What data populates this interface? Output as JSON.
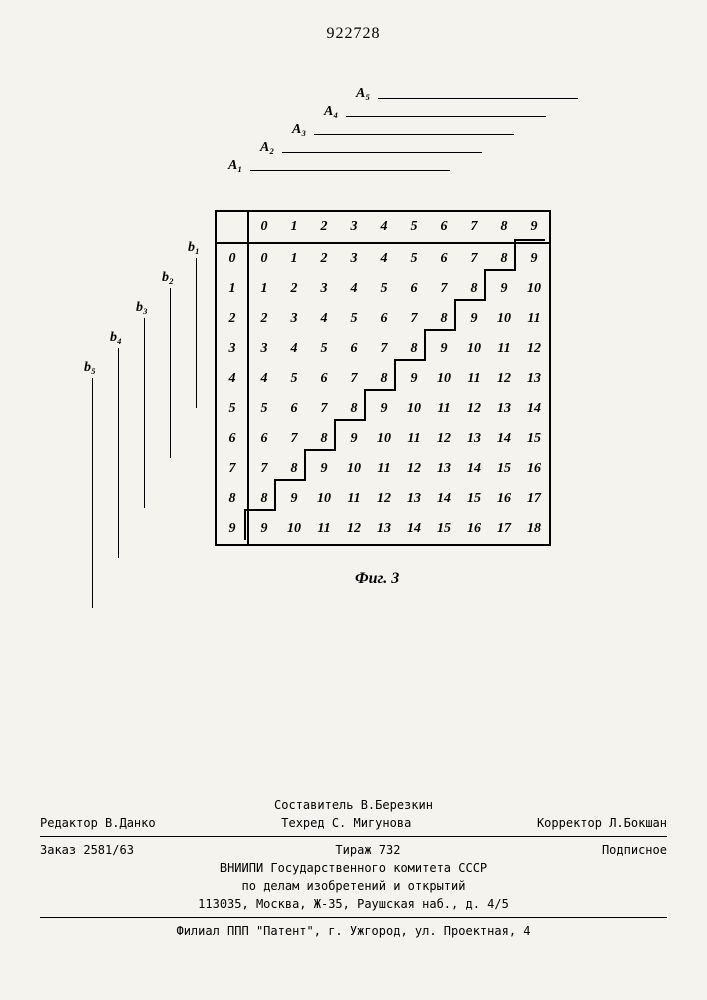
{
  "page_number": "922728",
  "figure": {
    "caption": "Фиг. 3",
    "a_labels": [
      "A₁",
      "A₂",
      "A₃",
      "A₄",
      "A₅"
    ],
    "b_labels": [
      "b₁",
      "b₂",
      "b₃",
      "b₄",
      "b₅"
    ],
    "col_headers": [
      "0",
      "1",
      "2",
      "3",
      "4",
      "5",
      "6",
      "7",
      "8",
      "9"
    ],
    "row_headers": [
      "0",
      "1",
      "2",
      "3",
      "4",
      "5",
      "6",
      "7",
      "8",
      "9"
    ],
    "rows": [
      [
        "0",
        "1",
        "2",
        "3",
        "4",
        "5",
        "6",
        "7",
        "8",
        "9"
      ],
      [
        "1",
        "2",
        "3",
        "4",
        "5",
        "6",
        "7",
        "8",
        "9",
        "10"
      ],
      [
        "2",
        "3",
        "4",
        "5",
        "6",
        "7",
        "8",
        "9",
        "10",
        "11"
      ],
      [
        "3",
        "4",
        "5",
        "6",
        "7",
        "8",
        "9",
        "10",
        "11",
        "12"
      ],
      [
        "4",
        "5",
        "6",
        "7",
        "8",
        "9",
        "10",
        "11",
        "12",
        "13"
      ],
      [
        "5",
        "6",
        "7",
        "8",
        "9",
        "10",
        "11",
        "12",
        "13",
        "14"
      ],
      [
        "6",
        "7",
        "8",
        "9",
        "10",
        "11",
        "12",
        "13",
        "14",
        "15"
      ],
      [
        "7",
        "8",
        "9",
        "10",
        "11",
        "12",
        "13",
        "14",
        "15",
        "16"
      ],
      [
        "8",
        "9",
        "10",
        "11",
        "12",
        "13",
        "14",
        "15",
        "16",
        "17"
      ],
      [
        "9",
        "10",
        "11",
        "12",
        "13",
        "14",
        "15",
        "16",
        "17",
        "18"
      ]
    ],
    "cell_size": 30,
    "border_color": "#000000",
    "font_style": "italic-bold"
  },
  "footer": {
    "compiler": "Составитель В.Березкин",
    "editor": "Редактор В.Данко",
    "tech_editor": "Техред С. Мигунова",
    "corrector": "Корректор Л.Бокшан",
    "order": "Заказ 2581/63",
    "circulation": "Тираж 732",
    "subscription": "Подписное",
    "org1": "ВНИИПИ Государственного комитета СССР",
    "org2": "по делам изобретений и открытий",
    "address": "113035, Москва, Ж-35, Раушская наб., д. 4/5",
    "branch": "Филиал ППП \"Патент\", г. Ужгород, ул. Проектная, 4"
  },
  "colors": {
    "background": "#f5f3ee",
    "text": "#000000",
    "border": "#000000"
  }
}
